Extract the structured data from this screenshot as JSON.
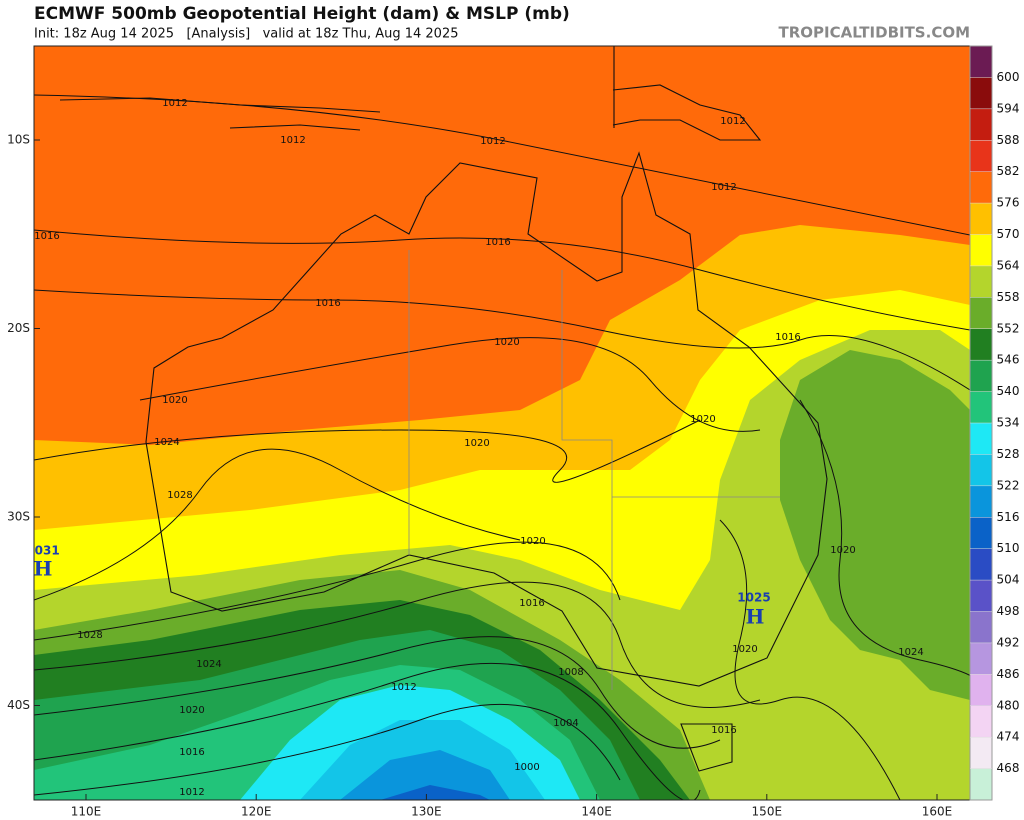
{
  "header": {
    "title": "ECMWF 500mb Geopotential Height (dam) & MSLP (mb)",
    "subtitle": "Init: 18z Aug 14 2025   [Analysis]   valid at 18z Thu, Aug 14 2025",
    "site": "TROPICALTIDBITS.COM"
  },
  "map": {
    "lat_labels": [
      "10S",
      "20S",
      "30S",
      "40S"
    ],
    "lon_labels": [
      "110E",
      "120E",
      "130E",
      "140E",
      "150E",
      "160E"
    ],
    "contour_labels": [
      "1012",
      "1012",
      "1012",
      "1012",
      "1012",
      "1016",
      "1016",
      "1016",
      "1016",
      "1020",
      "1020",
      "1020",
      "1020",
      "1024",
      "1028",
      "1020",
      "1016",
      "1028",
      "1024",
      "1020",
      "1016",
      "1012",
      "1012",
      "1008",
      "1004",
      "1000",
      "1016",
      "1020",
      "1020",
      "1024"
    ],
    "highs": [
      {
        "value": "1031",
        "letter": "H"
      },
      {
        "value": "1025",
        "letter": "H"
      }
    ]
  },
  "colorbar": {
    "levels": [
      600,
      594,
      588,
      582,
      576,
      570,
      564,
      558,
      552,
      546,
      540,
      534,
      528,
      522,
      516,
      510,
      504,
      498,
      492,
      486,
      480,
      474,
      468
    ],
    "colors": [
      "#6b1b53",
      "#8a0c0c",
      "#c41d10",
      "#e8341a",
      "#ff6a0a",
      "#ffc000",
      "#ffff00",
      "#b4d52c",
      "#6aad2a",
      "#217f21",
      "#1fa34f",
      "#22c47a",
      "#1ee8f5",
      "#13c5e8",
      "#0a95dc",
      "#0a62c8",
      "#2a4cc4",
      "#5a52c8",
      "#8a74cc",
      "#b696e0",
      "#e0b2ee",
      "#f3d4f3",
      "#f3eaf3",
      "#c8f0d8"
    ]
  }
}
